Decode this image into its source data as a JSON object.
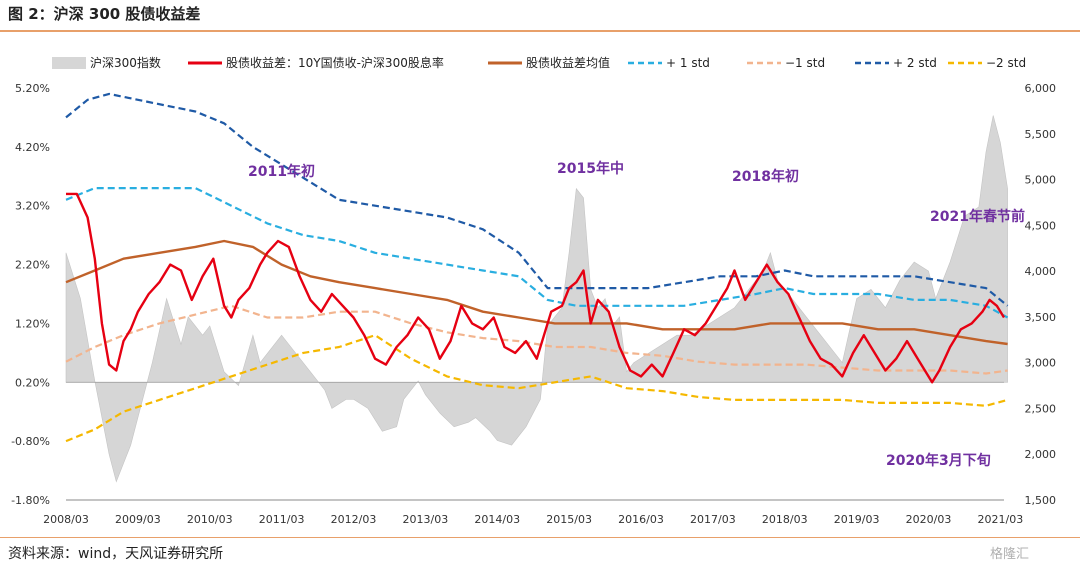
{
  "header": {
    "title": "图 2：沪深 300 股债收益差"
  },
  "footer": {
    "source": "资料来源：wind，天风证券研究所",
    "watermark": "格隆汇"
  },
  "colors": {
    "index_fill": "#d6d6d6",
    "spread": "#e60012",
    "mean": "#c0622a",
    "plus1": "#29aee0",
    "minus1": "#f2b48e",
    "plus2": "#1f5aa6",
    "minus2": "#f5b800"
  },
  "chart_data": {
    "type": "line",
    "x_ticks": [
      "2008/03",
      "2009/03",
      "2010/03",
      "2011/03",
      "2012/03",
      "2013/03",
      "2014/03",
      "2015/03",
      "2016/03",
      "2017/03",
      "2018/03",
      "2019/03",
      "2020/03",
      "2021/03"
    ],
    "y_left_ticks": [
      "5.20%",
      "4.20%",
      "3.20%",
      "2.20%",
      "1.20%",
      "0.20%",
      "-0.80%",
      "-1.80%"
    ],
    "y_left_range": [
      -1.8,
      5.2
    ],
    "y_right_ticks": [
      "6,000",
      "5,500",
      "5,000",
      "4,500",
      "4,000",
      "3,500",
      "3,000",
      "2,500",
      "2,000",
      "1,500"
    ],
    "y_right_range": [
      1500,
      6000
    ],
    "legend": [
      {
        "label": "沪深300指数",
        "style": "area",
        "color": "#d6d6d6"
      },
      {
        "label": "股债收益差：10Y国债收-沪深300股息率",
        "style": "solid",
        "color": "#e60012"
      },
      {
        "label": "股债收益差均值",
        "style": "solid",
        "color": "#c0622a"
      },
      {
        "label": "+ 1 std",
        "style": "dashed",
        "color": "#29aee0"
      },
      {
        "label": "−1 std",
        "style": "dashed",
        "color": "#f2b48e"
      },
      {
        "label": "+ 2 std",
        "style": "dashed",
        "color": "#1f5aa6"
      },
      {
        "label": "−2 std",
        "style": "dashed",
        "color": "#f5b800"
      }
    ],
    "annotations": [
      "2011年初",
      "2015年中",
      "2018年初",
      "2021年春节前",
      "2020年3月下旬"
    ],
    "series": [
      {
        "name": "沪深300指数",
        "axis": "right",
        "style": "area",
        "x": [
          2008.2,
          2008.4,
          2008.6,
          2008.8,
          2008.9,
          2009.1,
          2009.2,
          2009.4,
          2009.6,
          2009.8,
          2009.9,
          2010.1,
          2010.2,
          2010.4,
          2010.6,
          2010.8,
          2010.9,
          2011.1,
          2011.2,
          2011.4,
          2011.6,
          2011.8,
          2011.9,
          2012.1,
          2012.2,
          2012.4,
          2012.6,
          2012.8,
          2012.9,
          2013.1,
          2013.2,
          2013.4,
          2013.6,
          2013.8,
          2013.9,
          2014.1,
          2014.2,
          2014.4,
          2014.6,
          2014.8,
          2014.9,
          2015.1,
          2015.2,
          2015.3,
          2015.4,
          2015.5,
          2015.6,
          2015.7,
          2015.8,
          2015.9,
          2016.0,
          2016.1,
          2016.3,
          2016.5,
          2016.7,
          2016.9,
          2017.1,
          2017.3,
          2017.5,
          2017.7,
          2017.9,
          2018.0,
          2018.1,
          2018.3,
          2018.5,
          2018.7,
          2018.9,
          2019.0,
          2019.2,
          2019.4,
          2019.6,
          2019.8,
          2020.0,
          2020.2,
          2020.3,
          2020.5,
          2020.7,
          2020.9,
          2021.0,
          2021.1,
          2021.2,
          2021.3
        ],
        "y": [
          4200,
          3700,
          2800,
          2000,
          1700,
          2100,
          2400,
          3000,
          3700,
          3200,
          3500,
          3300,
          3400,
          2900,
          2750,
          3300,
          3000,
          3200,
          3300,
          3100,
          2900,
          2700,
          2500,
          2600,
          2600,
          2500,
          2250,
          2300,
          2600,
          2800,
          2650,
          2450,
          2300,
          2350,
          2400,
          2250,
          2150,
          2100,
          2300,
          2600,
          3400,
          3600,
          4200,
          4900,
          4800,
          3800,
          3600,
          3700,
          3400,
          3500,
          2900,
          3000,
          3100,
          3200,
          3300,
          3300,
          3400,
          3500,
          3600,
          3800,
          4000,
          4200,
          3900,
          3700,
          3500,
          3300,
          3100,
          3000,
          3700,
          3800,
          3600,
          3900,
          4100,
          4000,
          3700,
          4100,
          4600,
          4700,
          5300,
          5700,
          5400,
          4900
        ]
      },
      {
        "name": "股债收益差：10Y国债收-沪深300股息率",
        "axis": "left",
        "style": "solid",
        "x": [
          2008.2,
          2008.35,
          2008.5,
          2008.6,
          2008.7,
          2008.8,
          2008.9,
          2009.0,
          2009.1,
          2009.2,
          2009.35,
          2009.5,
          2009.65,
          2009.8,
          2009.95,
          2010.1,
          2010.25,
          2010.4,
          2010.5,
          2010.6,
          2010.75,
          2010.9,
          2011.0,
          2011.15,
          2011.3,
          2011.45,
          2011.6,
          2011.75,
          2011.9,
          2012.05,
          2012.2,
          2012.35,
          2012.5,
          2012.65,
          2012.8,
          2012.95,
          2013.1,
          2013.25,
          2013.4,
          2013.55,
          2013.7,
          2013.85,
          2014.0,
          2014.15,
          2014.3,
          2014.45,
          2014.6,
          2014.75,
          2014.85,
          2014.95,
          2015.1,
          2015.2,
          2015.3,
          2015.4,
          2015.5,
          2015.6,
          2015.75,
          2015.9,
          2016.05,
          2016.2,
          2016.35,
          2016.5,
          2016.65,
          2016.8,
          2016.95,
          2017.1,
          2017.25,
          2017.4,
          2017.5,
          2017.65,
          2017.8,
          2017.95,
          2018.1,
          2018.25,
          2018.4,
          2018.55,
          2018.7,
          2018.85,
          2019.0,
          2019.15,
          2019.3,
          2019.45,
          2019.6,
          2019.75,
          2019.9,
          2020.05,
          2020.15,
          2020.25,
          2020.35,
          2020.5,
          2020.65,
          2020.8,
          2020.95,
          2021.05,
          2021.15,
          2021.25
        ],
        "y": [
          3.4,
          3.4,
          3.0,
          2.3,
          1.2,
          0.5,
          0.4,
          0.9,
          1.1,
          1.4,
          1.7,
          1.9,
          2.2,
          2.1,
          1.6,
          2.0,
          2.3,
          1.5,
          1.3,
          1.6,
          1.8,
          2.2,
          2.4,
          2.6,
          2.5,
          2.0,
          1.6,
          1.4,
          1.7,
          1.5,
          1.3,
          1.0,
          0.6,
          0.5,
          0.8,
          1.0,
          1.3,
          1.1,
          0.6,
          0.9,
          1.5,
          1.2,
          1.1,
          1.3,
          0.8,
          0.7,
          0.9,
          0.6,
          1.0,
          1.4,
          1.5,
          1.8,
          1.9,
          2.1,
          1.2,
          1.6,
          1.4,
          0.8,
          0.4,
          0.3,
          0.5,
          0.3,
          0.7,
          1.1,
          1.0,
          1.2,
          1.5,
          1.8,
          2.1,
          1.6,
          1.9,
          2.2,
          1.9,
          1.7,
          1.3,
          0.9,
          0.6,
          0.5,
          0.3,
          0.7,
          1.0,
          0.7,
          0.4,
          0.6,
          0.9,
          0.6,
          0.4,
          0.2,
          0.4,
          0.8,
          1.1,
          1.2,
          1.4,
          1.6,
          1.5,
          1.3
        ]
      },
      {
        "name": "股债收益差均值",
        "axis": "left",
        "style": "solid",
        "x": [
          2008.2,
          2008.6,
          2009.0,
          2009.5,
          2010.0,
          2010.4,
          2010.8,
          2011.2,
          2011.6,
          2012.0,
          2012.5,
          2013.0,
          2013.5,
          2014.0,
          2014.5,
          2015.0,
          2015.5,
          2016.0,
          2016.5,
          2017.0,
          2017.5,
          2018.0,
          2018.5,
          2019.0,
          2019.5,
          2020.0,
          2020.5,
          2021.0,
          2021.3
        ],
        "y": [
          1.9,
          2.1,
          2.3,
          2.4,
          2.5,
          2.6,
          2.5,
          2.2,
          2.0,
          1.9,
          1.8,
          1.7,
          1.6,
          1.4,
          1.3,
          1.2,
          1.2,
          1.2,
          1.1,
          1.1,
          1.1,
          1.2,
          1.2,
          1.2,
          1.1,
          1.1,
          1.0,
          0.9,
          0.85
        ]
      },
      {
        "name": "+ 1 std",
        "axis": "left",
        "style": "dashed",
        "x": [
          2008.2,
          2008.6,
          2009.0,
          2009.5,
          2010.0,
          2010.5,
          2011.0,
          2011.5,
          2012.0,
          2012.5,
          2013.0,
          2013.5,
          2014.0,
          2014.5,
          2014.9,
          2015.3,
          2015.8,
          2016.3,
          2016.8,
          2017.3,
          2017.8,
          2018.2,
          2018.6,
          2019.0,
          2019.5,
          2020.0,
          2020.5,
          2021.0,
          2021.3
        ],
        "y": [
          3.3,
          3.5,
          3.5,
          3.5,
          3.5,
          3.2,
          2.9,
          2.7,
          2.6,
          2.4,
          2.3,
          2.2,
          2.1,
          2.0,
          1.6,
          1.5,
          1.5,
          1.5,
          1.5,
          1.6,
          1.7,
          1.8,
          1.7,
          1.7,
          1.7,
          1.6,
          1.6,
          1.5,
          1.3
        ]
      },
      {
        "name": "−1 std",
        "axis": "left",
        "style": "dashed",
        "x": [
          2008.2,
          2008.6,
          2009.0,
          2009.5,
          2010.0,
          2010.5,
          2011.0,
          2011.5,
          2012.0,
          2012.5,
          2013.0,
          2013.5,
          2014.0,
          2014.5,
          2015.0,
          2015.5,
          2016.0,
          2016.5,
          2017.0,
          2017.5,
          2018.0,
          2018.5,
          2019.0,
          2019.5,
          2020.0,
          2020.5,
          2021.0,
          2021.3
        ],
        "y": [
          0.55,
          0.8,
          1.0,
          1.2,
          1.35,
          1.5,
          1.3,
          1.3,
          1.4,
          1.4,
          1.2,
          1.05,
          0.95,
          0.9,
          0.8,
          0.8,
          0.7,
          0.65,
          0.55,
          0.5,
          0.5,
          0.5,
          0.45,
          0.4,
          0.4,
          0.4,
          0.35,
          0.4
        ]
      },
      {
        "name": "+ 2 std",
        "axis": "left",
        "style": "dashed",
        "x": [
          2008.2,
          2008.5,
          2008.8,
          2009.2,
          2009.6,
          2010.0,
          2010.4,
          2010.8,
          2011.2,
          2011.6,
          2012.0,
          2012.5,
          2013.0,
          2013.5,
          2014.0,
          2014.5,
          2014.9,
          2015.3,
          2015.8,
          2016.3,
          2016.8,
          2017.3,
          2017.8,
          2018.2,
          2018.6,
          2019.0,
          2019.5,
          2020.0,
          2020.5,
          2021.0,
          2021.3
        ],
        "y": [
          4.7,
          5.0,
          5.1,
          5.0,
          4.9,
          4.8,
          4.6,
          4.2,
          3.9,
          3.6,
          3.3,
          3.2,
          3.1,
          3.0,
          2.8,
          2.4,
          1.8,
          1.8,
          1.8,
          1.8,
          1.9,
          2.0,
          2.0,
          2.1,
          2.0,
          2.0,
          2.0,
          2.0,
          1.9,
          1.8,
          1.5
        ]
      },
      {
        "name": "−2 std",
        "axis": "left",
        "style": "dashed",
        "x": [
          2008.2,
          2008.6,
          2009.0,
          2009.5,
          2010.0,
          2010.5,
          2011.0,
          2011.5,
          2012.0,
          2012.5,
          2013.0,
          2013.5,
          2014.0,
          2014.5,
          2015.0,
          2015.5,
          2016.0,
          2016.5,
          2017.0,
          2017.5,
          2018.0,
          2018.5,
          2019.0,
          2019.5,
          2020.0,
          2020.5,
          2021.0,
          2021.3
        ],
        "y": [
          -0.8,
          -0.6,
          -0.3,
          -0.1,
          0.1,
          0.3,
          0.5,
          0.7,
          0.8,
          1.0,
          0.6,
          0.3,
          0.15,
          0.1,
          0.2,
          0.3,
          0.1,
          0.05,
          -0.05,
          -0.1,
          -0.1,
          -0.1,
          -0.1,
          -0.15,
          -0.15,
          -0.15,
          -0.2,
          -0.1
        ]
      }
    ]
  }
}
